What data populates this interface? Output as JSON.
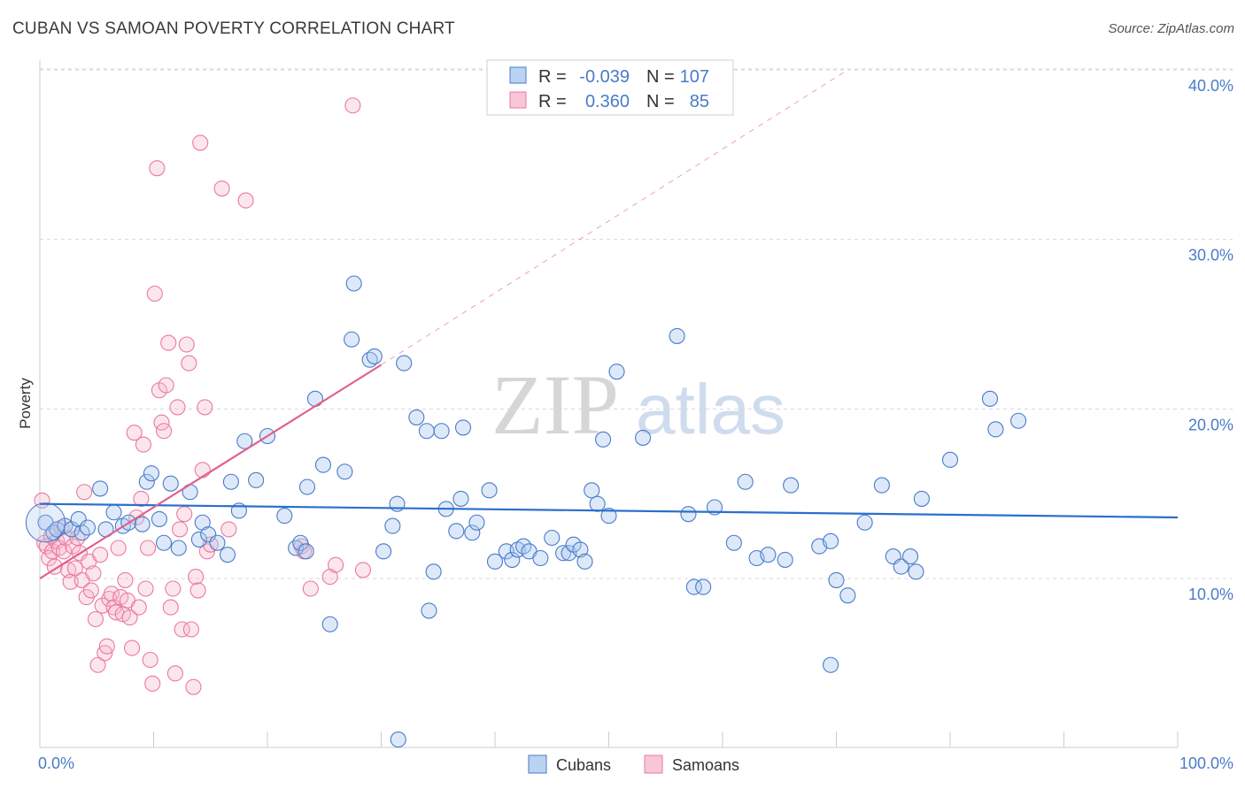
{
  "header": {
    "title": "CUBAN VS SAMOAN POVERTY CORRELATION CHART",
    "source": "Source: ZipAtlas.com"
  },
  "watermark": {
    "zip": "ZIP",
    "atlas": "atlas"
  },
  "colors": {
    "blue": "#4a7bc8",
    "blue_fill": "#a9c8ef",
    "blue_line": "#2b6fcb",
    "pink_fill": "#f6b8cc",
    "pink_stroke": "#e97aa0",
    "pink_line": "#e0608c",
    "grid": "#d8d8d8"
  },
  "chart_data": {
    "type": "scatter",
    "title": "CUBAN VS SAMOAN POVERTY CORRELATION CHART",
    "ylabel": "Poverty",
    "xlim": [
      0,
      100
    ],
    "ylim": [
      0,
      41
    ],
    "x_tick_labels": [
      {
        "value": 0,
        "label": "0.0%"
      },
      {
        "value": 100,
        "label": "100.0%"
      }
    ],
    "y_tick_labels": [
      {
        "value": 10,
        "label": "10.0%"
      },
      {
        "value": 20,
        "label": "20.0%"
      },
      {
        "value": 30,
        "label": "30.0%"
      },
      {
        "value": 40,
        "label": "40.0%"
      }
    ],
    "grid": "horizontal dashed",
    "legend_top": {
      "placement": "top-center",
      "rows": [
        {
          "series": "Cubans",
          "r_label": "R =",
          "r_value": "-0.039",
          "n_label": "N =",
          "n_value": "107"
        },
        {
          "series": "Samoans",
          "r_label": "R =",
          "r_value": "0.360",
          "n_label": "N =",
          "n_value": "85"
        }
      ]
    },
    "legend_bottom": [
      "Cubans",
      "Samoans"
    ],
    "series": [
      {
        "name": "Cubans",
        "trend": {
          "x0": 0,
          "y0": 14.4,
          "x1": 100,
          "y1": 13.6
        },
        "points": [
          [
            0.5,
            13.3
          ],
          [
            1.2,
            12.7
          ],
          [
            1.5,
            12.9
          ],
          [
            2.2,
            13.1
          ],
          [
            2.8,
            12.9
          ],
          [
            3.4,
            13.5
          ],
          [
            3.7,
            12.7
          ],
          [
            4.2,
            13.0
          ],
          [
            5.3,
            15.3
          ],
          [
            5.8,
            12.9
          ],
          [
            6.5,
            13.9
          ],
          [
            7.3,
            13.1
          ],
          [
            7.8,
            13.3
          ],
          [
            9.0,
            13.2
          ],
          [
            9.4,
            15.7
          ],
          [
            9.8,
            16.2
          ],
          [
            10.5,
            13.5
          ],
          [
            10.9,
            12.1
          ],
          [
            11.5,
            15.6
          ],
          [
            12.2,
            11.8
          ],
          [
            13.2,
            15.1
          ],
          [
            14.0,
            12.3
          ],
          [
            14.3,
            13.3
          ],
          [
            14.8,
            12.6
          ],
          [
            15.6,
            12.1
          ],
          [
            16.5,
            11.4
          ],
          [
            16.8,
            15.7
          ],
          [
            17.5,
            14.0
          ],
          [
            18.0,
            18.1
          ],
          [
            19.0,
            15.8
          ],
          [
            20.0,
            18.4
          ],
          [
            21.5,
            13.7
          ],
          [
            22.5,
            11.8
          ],
          [
            22.9,
            12.1
          ],
          [
            23.4,
            11.6
          ],
          [
            23.5,
            15.4
          ],
          [
            24.2,
            20.6
          ],
          [
            24.9,
            16.7
          ],
          [
            25.5,
            7.3
          ],
          [
            26.8,
            16.3
          ],
          [
            27.4,
            24.1
          ],
          [
            27.6,
            27.4
          ],
          [
            29.0,
            22.9
          ],
          [
            29.4,
            23.1
          ],
          [
            30.2,
            11.6
          ],
          [
            31.0,
            13.1
          ],
          [
            31.4,
            14.4
          ],
          [
            32.0,
            22.7
          ],
          [
            33.1,
            19.5
          ],
          [
            34.0,
            18.7
          ],
          [
            34.2,
            8.1
          ],
          [
            34.6,
            10.4
          ],
          [
            35.3,
            18.7
          ],
          [
            35.7,
            14.1
          ],
          [
            36.6,
            12.8
          ],
          [
            37.0,
            14.7
          ],
          [
            37.2,
            18.9
          ],
          [
            38.0,
            12.7
          ],
          [
            38.4,
            13.3
          ],
          [
            39.5,
            15.2
          ],
          [
            40.0,
            11.0
          ],
          [
            41.0,
            11.6
          ],
          [
            41.5,
            11.1
          ],
          [
            42.0,
            11.7
          ],
          [
            42.5,
            11.9
          ],
          [
            43.0,
            11.6
          ],
          [
            44.0,
            11.2
          ],
          [
            45.0,
            12.4
          ],
          [
            46.0,
            11.5
          ],
          [
            46.5,
            11.5
          ],
          [
            46.9,
            12.0
          ],
          [
            47.5,
            11.7
          ],
          [
            47.9,
            11.0
          ],
          [
            48.5,
            15.2
          ],
          [
            49.0,
            14.4
          ],
          [
            49.5,
            18.2
          ],
          [
            50.0,
            13.7
          ],
          [
            50.7,
            22.2
          ],
          [
            53.0,
            18.3
          ],
          [
            56.0,
            24.3
          ],
          [
            57.0,
            13.8
          ],
          [
            57.5,
            9.5
          ],
          [
            58.3,
            9.5
          ],
          [
            59.3,
            14.2
          ],
          [
            61.0,
            12.1
          ],
          [
            62.0,
            15.7
          ],
          [
            63.0,
            11.2
          ],
          [
            64.0,
            11.4
          ],
          [
            65.5,
            11.1
          ],
          [
            66.0,
            15.5
          ],
          [
            68.5,
            11.9
          ],
          [
            69.5,
            12.2
          ],
          [
            70.0,
            9.9
          ],
          [
            71.0,
            9.0
          ],
          [
            72.5,
            13.3
          ],
          [
            74.0,
            15.5
          ],
          [
            75.0,
            11.3
          ],
          [
            75.7,
            10.7
          ],
          [
            76.5,
            11.3
          ],
          [
            77.0,
            10.4
          ],
          [
            77.5,
            14.7
          ],
          [
            80.0,
            17.0
          ],
          [
            83.5,
            20.6
          ],
          [
            84.0,
            18.8
          ],
          [
            86.0,
            19.3
          ],
          [
            31.5,
            0.5
          ],
          [
            69.5,
            4.9
          ]
        ]
      },
      {
        "name": "Samoans",
        "trend": {
          "x0": 0,
          "y0": 10.0,
          "x1": 30,
          "y1": 22.6
        },
        "trend_extension": {
          "x0": 30,
          "y0": 22.6,
          "x1": 71,
          "y1": 40.0
        },
        "points": [
          [
            0.2,
            14.6
          ],
          [
            0.4,
            12.1
          ],
          [
            0.6,
            11.9
          ],
          [
            0.8,
            11.2
          ],
          [
            1.0,
            12.5
          ],
          [
            1.1,
            11.6
          ],
          [
            1.3,
            10.7
          ],
          [
            1.5,
            12.2
          ],
          [
            1.7,
            11.8
          ],
          [
            1.9,
            13.0
          ],
          [
            2.1,
            11.6
          ],
          [
            2.3,
            12.4
          ],
          [
            2.5,
            10.5
          ],
          [
            2.7,
            9.8
          ],
          [
            2.9,
            11.9
          ],
          [
            3.1,
            10.6
          ],
          [
            3.3,
            12.4
          ],
          [
            3.5,
            11.5
          ],
          [
            3.7,
            9.9
          ],
          [
            3.9,
            15.1
          ],
          [
            4.1,
            8.9
          ],
          [
            4.3,
            11.0
          ],
          [
            4.5,
            9.3
          ],
          [
            4.7,
            10.3
          ],
          [
            4.9,
            7.6
          ],
          [
            5.1,
            4.9
          ],
          [
            5.3,
            11.4
          ],
          [
            5.5,
            8.4
          ],
          [
            5.7,
            5.6
          ],
          [
            5.9,
            6.0
          ],
          [
            6.1,
            8.8
          ],
          [
            6.3,
            9.1
          ],
          [
            6.5,
            8.3
          ],
          [
            6.7,
            8.0
          ],
          [
            6.9,
            11.8
          ],
          [
            7.1,
            8.9
          ],
          [
            7.3,
            7.9
          ],
          [
            7.5,
            9.9
          ],
          [
            7.7,
            8.7
          ],
          [
            7.9,
            7.7
          ],
          [
            8.1,
            5.9
          ],
          [
            8.3,
            18.6
          ],
          [
            8.5,
            13.6
          ],
          [
            8.7,
            8.3
          ],
          [
            8.9,
            14.7
          ],
          [
            9.1,
            17.9
          ],
          [
            9.3,
            9.4
          ],
          [
            9.5,
            11.8
          ],
          [
            9.7,
            5.2
          ],
          [
            9.9,
            3.8
          ],
          [
            10.1,
            26.8
          ],
          [
            10.3,
            34.2
          ],
          [
            10.5,
            21.1
          ],
          [
            10.7,
            19.2
          ],
          [
            10.9,
            18.7
          ],
          [
            11.1,
            21.4
          ],
          [
            11.3,
            23.9
          ],
          [
            11.5,
            8.3
          ],
          [
            11.7,
            9.4
          ],
          [
            11.9,
            4.4
          ],
          [
            12.1,
            20.1
          ],
          [
            12.3,
            12.9
          ],
          [
            12.5,
            7.0
          ],
          [
            12.7,
            13.8
          ],
          [
            12.9,
            23.8
          ],
          [
            13.1,
            22.7
          ],
          [
            13.3,
            7.0
          ],
          [
            13.5,
            3.6
          ],
          [
            13.7,
            10.1
          ],
          [
            13.9,
            9.3
          ],
          [
            14.1,
            35.7
          ],
          [
            14.3,
            16.4
          ],
          [
            14.5,
            20.1
          ],
          [
            14.7,
            11.6
          ],
          [
            15.0,
            12.0
          ],
          [
            16.0,
            33.0
          ],
          [
            16.6,
            12.9
          ],
          [
            18.1,
            32.3
          ],
          [
            23.0,
            11.9
          ],
          [
            23.2,
            11.6
          ],
          [
            23.8,
            9.4
          ],
          [
            25.5,
            10.1
          ],
          [
            26.0,
            10.8
          ],
          [
            27.5,
            37.9
          ],
          [
            28.4,
            10.5
          ]
        ]
      }
    ]
  }
}
